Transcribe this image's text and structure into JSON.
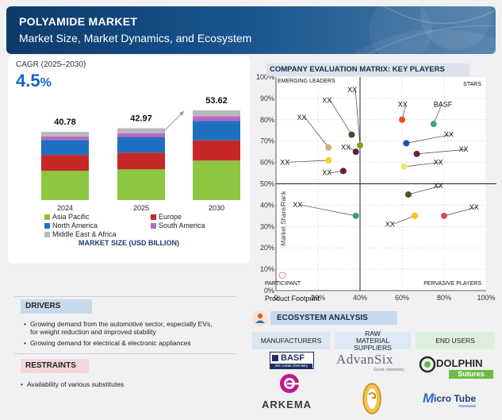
{
  "header": {
    "title": "POLYAMIDE MARKET",
    "subtitle": "Market Size, Market Dynamics, and Ecosystem"
  },
  "cagr": {
    "label": "CAGR (2025–2030)",
    "value": "4.5",
    "unit": "%"
  },
  "chart_data": [
    {
      "type": "bar",
      "stacked": true,
      "title": "MARKET SIZE (USD BILLION)",
      "categories": [
        "2024",
        "2025",
        "2030"
      ],
      "totals": [
        40.78,
        42.97,
        53.62
      ],
      "total_labels": [
        "40.78",
        "42.97",
        "53.62"
      ],
      "ylim": [
        0,
        56
      ],
      "series": [
        {
          "name": "Asia Pacific",
          "color": "#8dc63f",
          "values": [
            17.5,
            18.4,
            23.6
          ]
        },
        {
          "name": "Europe",
          "color": "#c62828",
          "values": [
            9.5,
            9.9,
            12.1
          ]
        },
        {
          "name": "North America",
          "color": "#1e6fc0",
          "values": [
            8.9,
            9.4,
            11.6
          ]
        },
        {
          "name": "South America",
          "color": "#b868c8",
          "values": [
            2.2,
            2.3,
            2.8
          ]
        },
        {
          "name": "Middle East & Africa",
          "color": "#b9b9b9",
          "values": [
            2.68,
            2.97,
            3.52
          ]
        }
      ]
    },
    {
      "type": "scatter",
      "title": "COMPANY EVALUATION MATRIX: KEY PLAYERS",
      "xlabel": "Product Footprint",
      "ylabel": "Market Share/Rank",
      "xlim": [
        0,
        100
      ],
      "ylim": [
        0,
        100
      ],
      "x_ticks": [
        "0",
        "20%",
        "40%",
        "60%",
        "80%",
        "100%"
      ],
      "y_ticks": [
        "0%",
        "10%",
        "20%",
        "30%",
        "40%",
        "50%",
        "60%",
        "70%",
        "80%",
        "90%",
        "100%"
      ],
      "quadrants": [
        "EMERGING LEADERS",
        "STARS",
        "PARTICIPANT",
        "PERVASIVE PLAYERS"
      ],
      "points": [
        {
          "label": "XX",
          "x": 25,
          "y": 61,
          "color": "#f2d22e",
          "label_x": 2,
          "label_y": 59
        },
        {
          "label": "XX",
          "x": 25,
          "y": 67,
          "color": "#c8b070",
          "label_x": 10,
          "label_y": 80
        },
        {
          "label": "XX",
          "x": 32,
          "y": 56,
          "color": "#6b1f3d",
          "label_x": 22,
          "label_y": 54
        },
        {
          "label": "XX",
          "x": 36,
          "y": 73,
          "color": "#4a4b1f",
          "label_x": 22,
          "label_y": 88
        },
        {
          "label": "XX",
          "x": 38,
          "y": 65,
          "color": "#5a1f3f",
          "label_x": 31,
          "label_y": 66
        },
        {
          "label": "XX",
          "x": 40,
          "y": 68,
          "color": "#8a9a1c",
          "label_x": 34,
          "label_y": 93
        },
        {
          "label": "XX",
          "x": 38,
          "y": 35,
          "color": "#3a9e6e",
          "label_x": 8,
          "label_y": 39
        },
        {
          "label": "XX",
          "x": 60,
          "y": 80,
          "color": "#e84e1b",
          "label_x": 58,
          "label_y": 86
        },
        {
          "label": "BASF",
          "x": 75,
          "y": 78,
          "color": "#3aa39a",
          "label_x": 75,
          "label_y": 86
        },
        {
          "label": "XX",
          "x": 62,
          "y": 69,
          "color": "#1e4fb8",
          "label_x": 80,
          "label_y": 72
        },
        {
          "label": "XX",
          "x": 67,
          "y": 64,
          "color": "#6b1f3d",
          "label_x": 87,
          "label_y": 65
        },
        {
          "label": "XX",
          "x": 61,
          "y": 58,
          "color": "#f2e26e",
          "label_x": 75,
          "label_y": 59
        },
        {
          "label": "XX",
          "x": 63,
          "y": 45,
          "color": "#4a5a2a",
          "label_x": 75,
          "label_y": 48
        },
        {
          "label": "XX",
          "x": 66,
          "y": 35,
          "color": "#f2c21e",
          "label_x": 52,
          "label_y": 30
        },
        {
          "label": "XX",
          "x": 80,
          "y": 35,
          "color": "#d94a52",
          "label_x": 92,
          "label_y": 38
        }
      ]
    }
  ],
  "drivers": {
    "label": "DRIVERS",
    "items": [
      "Growing demand from the automotive sector, especially EVs, for weight reduction and improved stability",
      "Growing demand for electrical & electronic appliances"
    ]
  },
  "restraints": {
    "label": "RESTRAINTS",
    "items": [
      "Availability of various substitutes"
    ]
  },
  "ecosystem": {
    "title": "ECOSYSTEM ANALYSIS",
    "columns": [
      "MANUFACTURERS",
      "RAW MATERIAL SUPPLIERS",
      "END USERS"
    ],
    "logos": {
      "basf": "BASF",
      "basf_tag": "We create chemistry",
      "advansix": "AdvanSix",
      "advansix_tag": "Good chemistry.",
      "dolphin": "DOLPHIN",
      "dolphin_sub": "Sutures",
      "arkema": "ARKEMA",
      "microtube": "icro Tube",
      "microtube_m": "M"
    }
  }
}
